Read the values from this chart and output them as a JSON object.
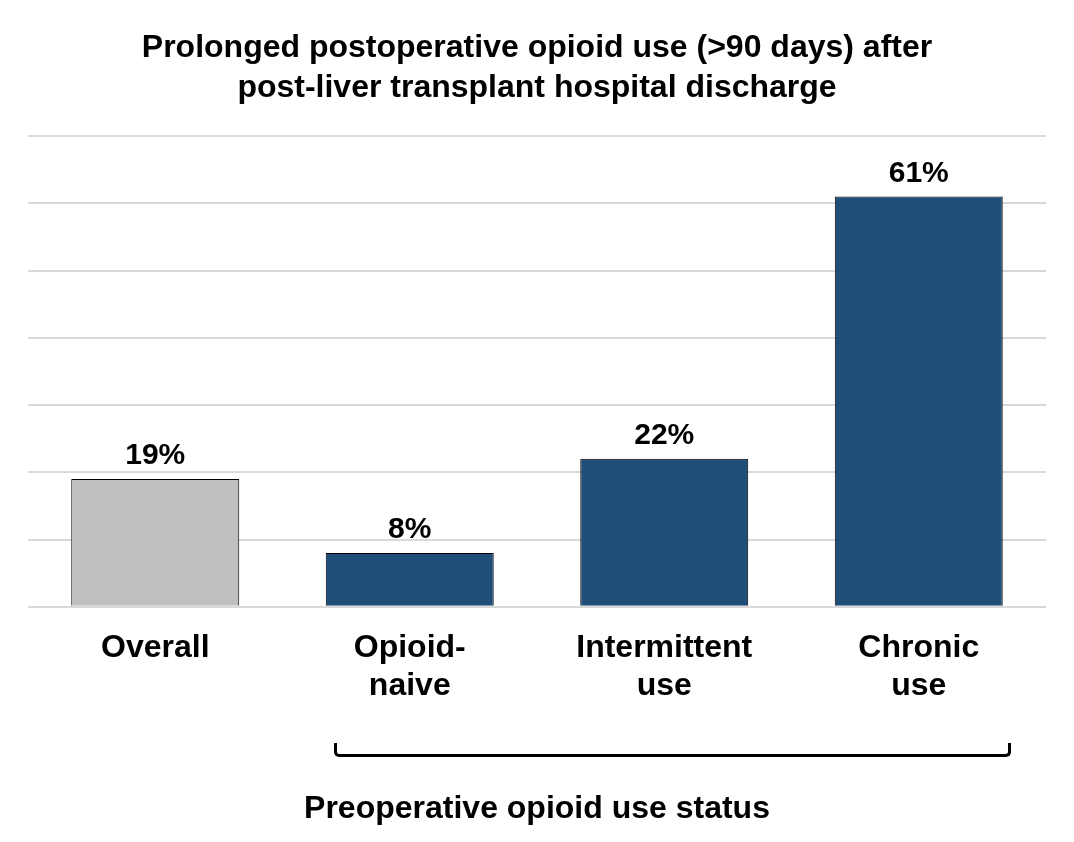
{
  "chart_data": {
    "type": "bar",
    "title": "Prolonged postoperative opioid use (>90 days) after post-liver transplant hospital discharge",
    "xlabel": "Preoperative opioid use status",
    "categories": [
      "Overall",
      "Opioid-naive",
      "Intermittent use",
      "Chronic use"
    ],
    "values": [
      19,
      8,
      22,
      61
    ],
    "colors": [
      "#bfbfbf",
      "#1f4e79",
      "#1f4e79",
      "#1f4e79"
    ],
    "value_labels": [
      "19%",
      "8%",
      "22%",
      "61%"
    ],
    "ylim": [
      0,
      70
    ],
    "grid": "y",
    "tick_labels": "x"
  }
}
